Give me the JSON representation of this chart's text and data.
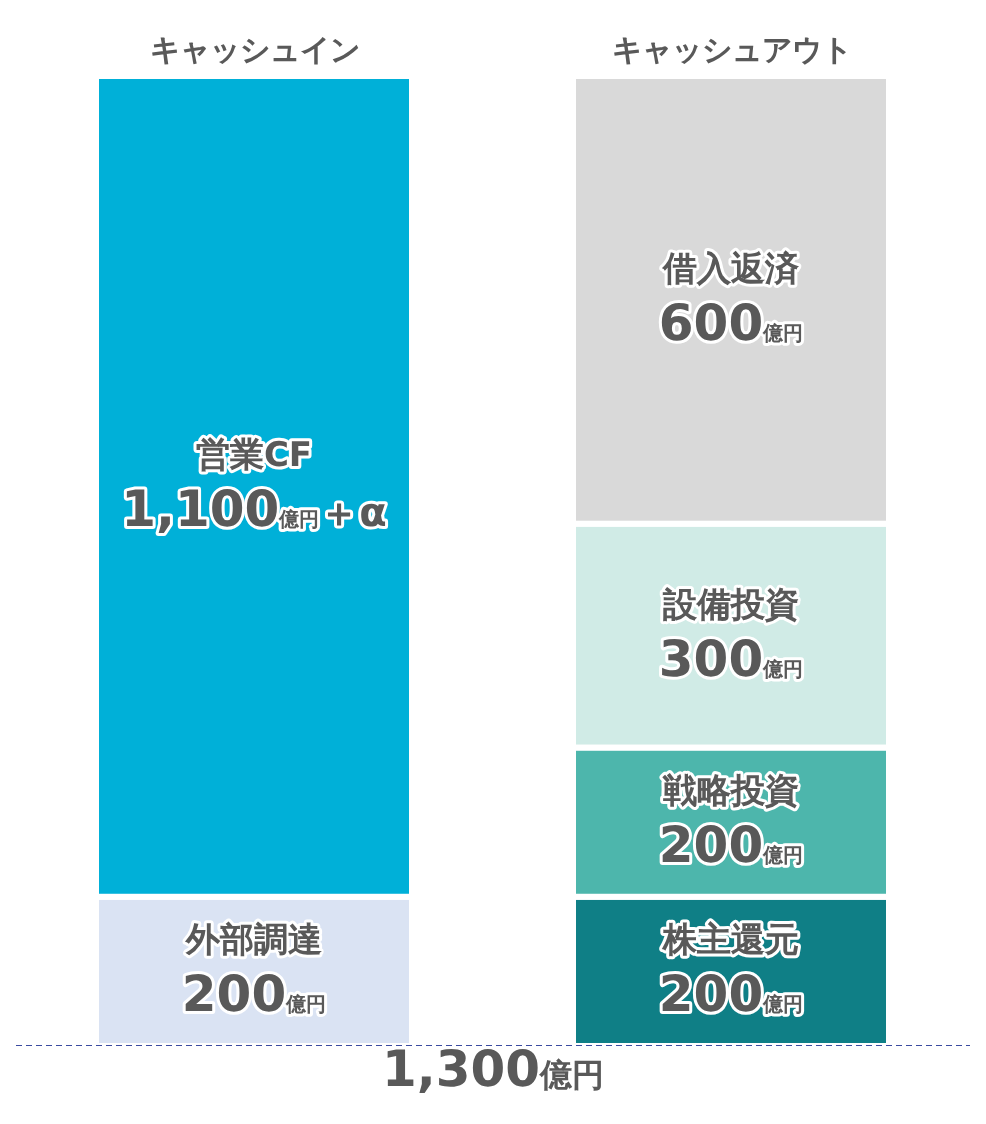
{
  "chart_data": {
    "type": "bar",
    "stacked": true,
    "categories": [
      "キャッシュイン",
      "キャッシュアウト"
    ],
    "series": [
      {
        "name": "外部調達",
        "color": "#dae3f3",
        "values": [
          200,
          null
        ],
        "value_labels": [
          "200億円",
          null
        ]
      },
      {
        "name": "営業CF",
        "color": "#00b0d8",
        "values": [
          1100,
          null
        ],
        "value_labels": [
          "1,100億円＋α",
          null
        ]
      },
      {
        "name": "株主還元",
        "color": "#0f7f86",
        "values": [
          null,
          200
        ],
        "value_labels": [
          null,
          "200億円"
        ]
      },
      {
        "name": "戦略投資",
        "color": "#4db6ac",
        "values": [
          null,
          200
        ],
        "value_labels": [
          null,
          "200億円"
        ]
      },
      {
        "name": "設備投資",
        "color": "#d0ebe6",
        "values": [
          null,
          300
        ],
        "value_labels": [
          null,
          "300億円"
        ]
      },
      {
        "name": "借入返済",
        "color": "#d9d9d9",
        "values": [
          null,
          600
        ],
        "value_labels": [
          null,
          "600億円"
        ]
      }
    ],
    "ref_lines": [
      {
        "axis": "y",
        "value": 0,
        "color": "#3b4ba0",
        "line_style": "dashed"
      }
    ],
    "annotations": [
      "1,300億円"
    ]
  }
}
